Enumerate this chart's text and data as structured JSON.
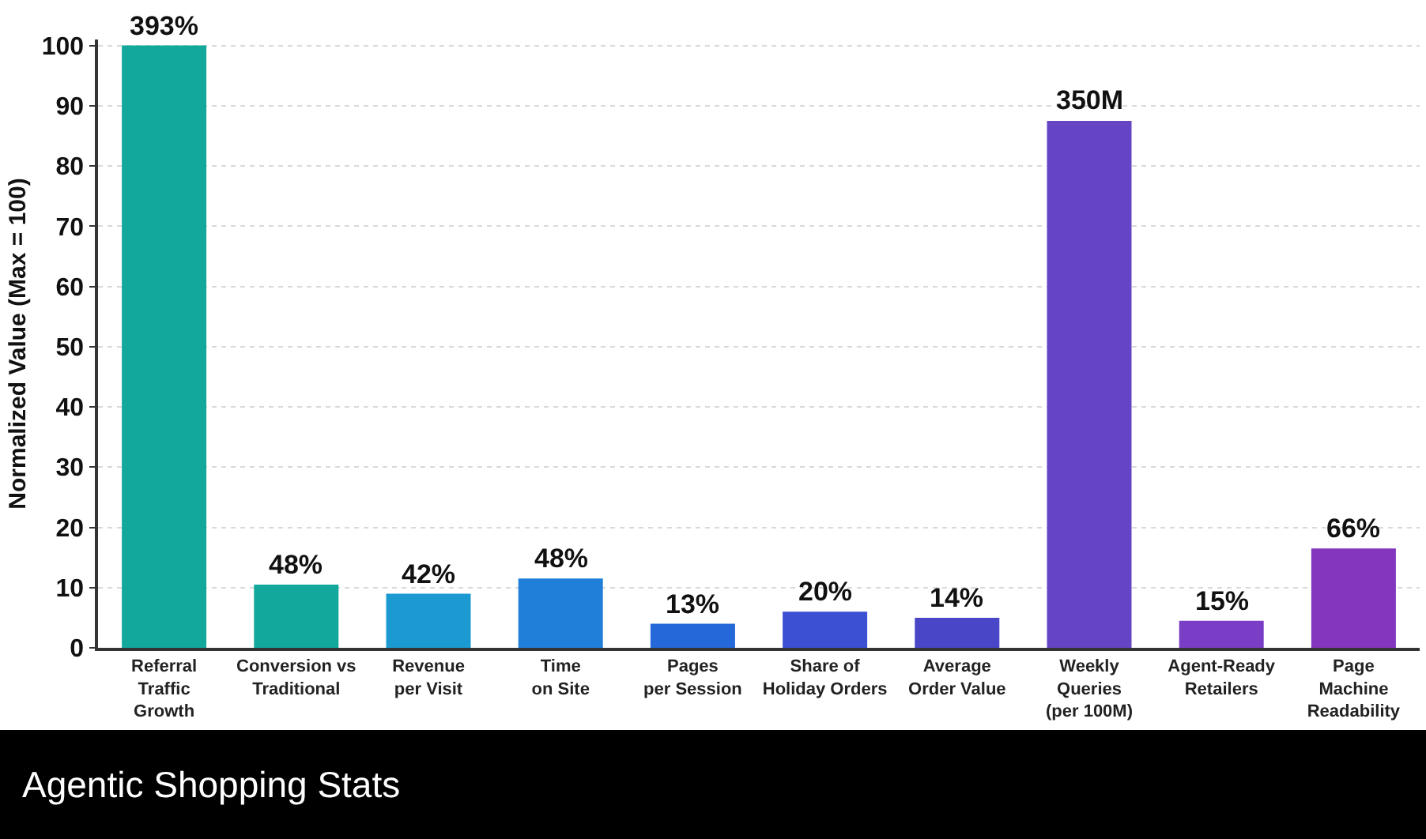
{
  "chart_data": {
    "type": "bar",
    "title": "Agentic Shopping Stats",
    "ylabel": "Normalized Value (Max = 100)",
    "categories": [
      "Referral\nTraffic\nGrowth",
      "Conversion vs\nTraditional",
      "Revenue\nper Visit",
      "Time\non Site",
      "Pages\nper Session",
      "Share of\nHoliday Orders",
      "Average\nOrder Value",
      "Weekly\nQueries\n(per 100M)",
      "Agent-Ready\nRetailers",
      "Page\nMachine\nReadability"
    ],
    "values": [
      100,
      10.5,
      9,
      11.5,
      4,
      6,
      5,
      87.5,
      4.5,
      16.5
    ],
    "colors": [
      "#13a89c",
      "#13a89c",
      "#1b9ad2",
      "#1f7fd9",
      "#2468d9",
      "#3b50d2",
      "#4a46c8",
      "#6545c4",
      "#7a3ec6",
      "#8436bf"
    ],
    "annotations": [
      {
        "text": "393%",
        "x": "Referral\nTraffic\nGrowth",
        "y": 100
      },
      {
        "text": "48%",
        "x": "Conversion vs\nTraditional",
        "y": 10.5
      },
      {
        "text": "42%",
        "x": "Revenue\nper Visit",
        "y": 9
      },
      {
        "text": "48%",
        "x": "Time\non Site",
        "y": 11.5
      },
      {
        "text": "13%",
        "x": "Pages\nper Session",
        "y": 4
      },
      {
        "text": "20%",
        "x": "Share of\nHoliday Orders",
        "y": 6
      },
      {
        "text": "14%",
        "x": "Average\nOrder Value",
        "y": 5
      },
      {
        "text": "350M",
        "x": "Weekly\nQueries\n(per 100M)",
        "y": 87.5
      },
      {
        "text": "15%",
        "x": "Agent-Ready\nRetailers",
        "y": 4.5
      },
      {
        "text": "66%",
        "x": "Page\nMachine\nReadability",
        "y": 16.5
      }
    ],
    "ylim": [
      0,
      101
    ],
    "yticks": [
      0,
      10,
      20,
      30,
      40,
      50,
      60,
      70,
      80,
      90,
      100
    ],
    "grid": "y"
  }
}
